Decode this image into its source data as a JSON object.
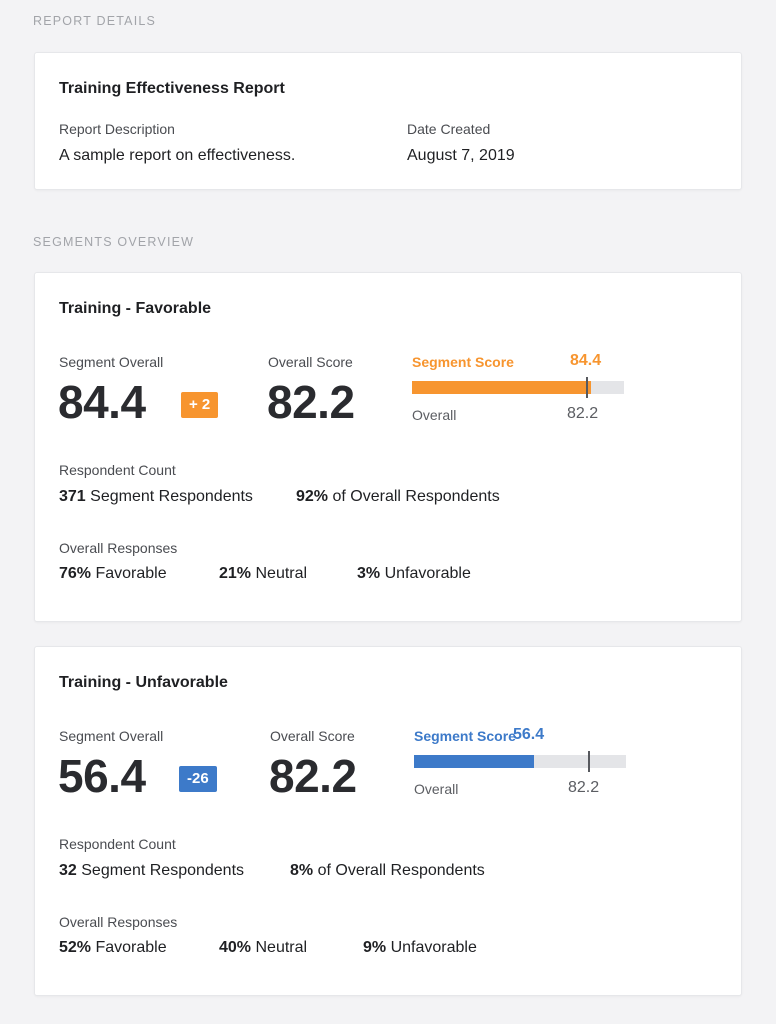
{
  "report_section_label": "REPORT DETAILS",
  "report": {
    "title": "Training Effectiveness Report",
    "description_label": "Report Description",
    "description": "A sample report on effectiveness.",
    "date_label": "Date Created",
    "date": "August 7, 2019"
  },
  "segments_section_label": "SEGMENTS OVERVIEW",
  "segments": [
    {
      "title": "Training - Favorable",
      "segment_overall_label": "Segment Overall",
      "segment_overall": "84.4",
      "delta": "+ 2",
      "overall_score_label": "Overall Score",
      "overall_score": "82.2",
      "segment_score_label": "Segment Score",
      "segment_score": "84.4",
      "overall_label": "Overall",
      "overall_value": "82.2",
      "bar_fill_fraction": 0.844,
      "marker_fraction": 0.822,
      "accent_color": "#f7952f",
      "respondent_count_label": "Respondent Count",
      "segment_respondents_num": "371",
      "segment_respondents_text": "Segment Respondents",
      "overall_respondents_num": "92%",
      "overall_respondents_text": "of Overall Respondents",
      "overall_responses_label": "Overall Responses",
      "favorable_num": "76%",
      "favorable_text": "Favorable",
      "neutral_num": "21%",
      "neutral_text": "Neutral",
      "unfavorable_num": "3%",
      "unfavorable_text": "Unfavorable"
    },
    {
      "title": "Training - Unfavorable",
      "segment_overall_label": "Segment Overall",
      "segment_overall": "56.4",
      "delta": "-26",
      "overall_score_label": "Overall Score",
      "overall_score": "82.2",
      "segment_score_label": "Segment Score",
      "segment_score": "56.4",
      "overall_label": "Overall",
      "overall_value": "82.2",
      "bar_fill_fraction": 0.564,
      "marker_fraction": 0.822,
      "accent_color": "#3d7ac9",
      "respondent_count_label": "Respondent Count",
      "segment_respondents_num": "32",
      "segment_respondents_text": "Segment Respondents",
      "overall_respondents_num": "8%",
      "overall_respondents_text": "of Overall Respondents",
      "overall_responses_label": "Overall Responses",
      "favorable_num": "52%",
      "favorable_text": "Favorable",
      "neutral_num": "40%",
      "neutral_text": "Neutral",
      "unfavorable_num": "9%",
      "unfavorable_text": "Unfavorable"
    }
  ]
}
